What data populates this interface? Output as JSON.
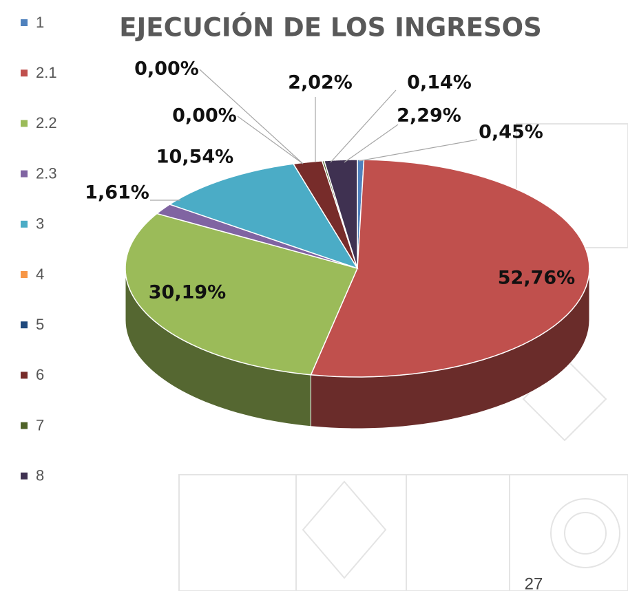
{
  "chart_data": {
    "type": "pie",
    "title": "EJECUCIÓN DE LOS INGRESOS",
    "categories": [
      "1",
      "2.1",
      "2.2",
      "2.3",
      "3",
      "4",
      "5",
      "6",
      "7",
      "8"
    ],
    "values": [
      0.45,
      52.76,
      30.19,
      1.61,
      10.54,
      0.0,
      0.0,
      2.02,
      0.14,
      2.29
    ],
    "value_labels": [
      "0,45%",
      "52,76%",
      "30,19%",
      "1,61%",
      "10,54%",
      "0,00%",
      "0,00%",
      "2,02%",
      "0,14%",
      "2,29%"
    ],
    "colors": [
      "#4f81bd",
      "#c0504d",
      "#9bbb59",
      "#8064a2",
      "#4bacc6",
      "#f79646",
      "#1f497d",
      "#772c2a",
      "#4f6228",
      "#3f3151"
    ],
    "legend": "left"
  },
  "page_number": "27"
}
